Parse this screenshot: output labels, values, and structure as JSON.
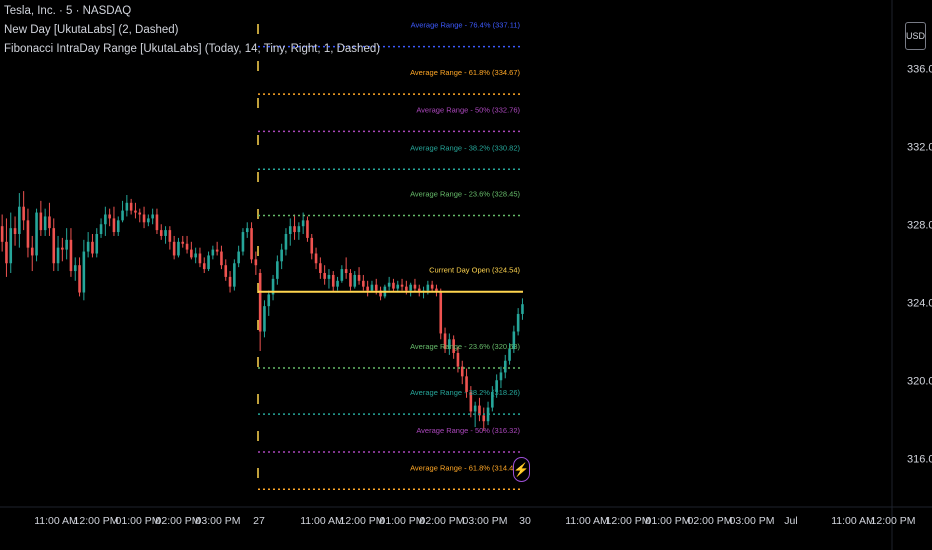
{
  "legend": {
    "symbol": "Tesla, Inc. · 5 · NASDAQ",
    "indicator1": "New Day [UkutaLabs] (2, Dashed)",
    "indicator2": "Fibonacci IntraDay Range [UkutaLabs] (Today, 14, Tiny, Right, 1, Dashed)"
  },
  "currency_button": "USD",
  "colors": {
    "up": "#26a69a",
    "down": "#ef5350",
    "blue": "#3d5afe",
    "orange": "#ffa726",
    "purple": "#ab47bc",
    "teal": "#26a69a",
    "green": "#66bb6a",
    "gold": "#ffd54f"
  },
  "chart_data": {
    "type": "candlestick",
    "symbol": "TSLA",
    "interval": "5",
    "ylim": [
      313.5,
      339.5
    ],
    "y_ticks": [
      "336.00",
      "332.00",
      "328.00",
      "324.00",
      "320.00",
      "316.00"
    ],
    "y_tick_values": [
      336,
      332,
      328,
      324,
      320,
      316
    ],
    "x_tick_labels": [
      "11:00 AM",
      "12:00 PM",
      "01:00 PM",
      "02:00 PM",
      "03:00 PM",
      "27",
      "11:00 AM",
      "12:00 PM",
      "01:00 PM",
      "02:00 PM",
      "03:00 PM",
      "30",
      "11:00 AM",
      "12:00 PM",
      "01:00 PM",
      "02:00 PM",
      "03:00 PM",
      "Jul",
      "11:00 AM",
      "12:00 PM"
    ],
    "new_day_dividers": [
      "27"
    ],
    "levels": [
      {
        "label": "Average Range - 76.4% (337.11)",
        "value": 337.11,
        "color": "blue"
      },
      {
        "label": "Average Range - 61.8% (334.67)",
        "value": 334.67,
        "color": "orange"
      },
      {
        "label": "Average Range - 50% (332.76)",
        "value": 332.76,
        "color": "purple"
      },
      {
        "label": "Average Range - 38.2% (330.82)",
        "value": 330.82,
        "color": "teal"
      },
      {
        "label": "Average Range - 23.6% (328.45)",
        "value": 328.45,
        "color": "green"
      },
      {
        "label": "Current Day Open (324.54)",
        "value": 324.54,
        "color": "gold"
      },
      {
        "label": "Average Range - 23.6% (320.63)",
        "value": 320.63,
        "color": "green"
      },
      {
        "label": "Average Range - 38.2% (318.26)",
        "value": 318.26,
        "color": "teal"
      },
      {
        "label": "Average Range - 50% (316.32)",
        "value": 316.32,
        "color": "purple"
      },
      {
        "label": "Average Range - 61.8% (314.41)",
        "value": 314.41,
        "color": "orange"
      }
    ],
    "candles": [
      [
        327.9,
        328.5,
        326.6,
        327.1
      ],
      [
        327.1,
        328.3,
        325.3,
        326
      ],
      [
        326,
        328.6,
        325.5,
        327.8
      ],
      [
        327.8,
        328.4,
        326.9,
        327.5
      ],
      [
        327.5,
        329.6,
        326.8,
        328.9
      ],
      [
        328.9,
        329.7,
        327.7,
        328.2
      ],
      [
        328.2,
        328.8,
        326.3,
        326.8
      ],
      [
        326.8,
        327.4,
        325.6,
        326.4
      ],
      [
        326.4,
        328.8,
        326.1,
        328.6
      ],
      [
        328.6,
        329.2,
        327.4,
        327.7
      ],
      [
        327.7,
        328.8,
        327.4,
        328.4
      ],
      [
        328.4,
        329.1,
        327.4,
        327.8
      ],
      [
        327.8,
        328.3,
        325.6,
        326
      ],
      [
        326,
        327.4,
        325.6,
        326.8
      ],
      [
        326.8,
        327.3,
        326.1,
        326.7
      ],
      [
        326.7,
        327.8,
        326.2,
        327.2
      ],
      [
        327.2,
        327.8,
        325.3,
        325.6
      ],
      [
        325.6,
        326.3,
        325.1,
        325.9
      ],
      [
        325.9,
        326.3,
        324.3,
        324.5
      ],
      [
        324.5,
        327.2,
        324.1,
        326.6
      ],
      [
        326.6,
        327.6,
        326.3,
        327.1
      ],
      [
        327.1,
        327.5,
        326.3,
        326.5
      ],
      [
        326.5,
        327.8,
        326.3,
        327.5
      ],
      [
        327.5,
        328.3,
        327.3,
        328
      ],
      [
        328,
        328.9,
        327.4,
        328.5
      ],
      [
        328.5,
        328.8,
        327.9,
        328.3
      ],
      [
        328.3,
        328.9,
        327.4,
        327.6
      ],
      [
        327.6,
        328.4,
        327.4,
        328.2
      ],
      [
        328.2,
        329.2,
        328.1,
        328.7
      ],
      [
        328.7,
        329.5,
        328.4,
        329.1
      ],
      [
        329.1,
        329.3,
        328.5,
        328.7
      ],
      [
        328.7,
        329.1,
        328.3,
        328.6
      ],
      [
        328.6,
        328.8,
        328.1,
        328.5
      ],
      [
        328.5,
        328.9,
        327.8,
        328.1
      ],
      [
        328.1,
        328.5,
        327.9,
        328.3
      ],
      [
        328.3,
        328.8,
        328,
        328.5
      ],
      [
        328.5,
        328.8,
        327.5,
        327.7
      ],
      [
        327.7,
        328,
        327.2,
        327.4
      ],
      [
        327.4,
        327.9,
        327,
        327.7
      ],
      [
        327.7,
        327.9,
        326.7,
        327.1
      ],
      [
        327.1,
        327.4,
        326.2,
        326.4
      ],
      [
        326.4,
        327.3,
        326.3,
        327.1
      ],
      [
        327.1,
        327.4,
        326.8,
        327
      ],
      [
        327,
        327.4,
        326.5,
        326.7
      ],
      [
        326.7,
        327.1,
        326.2,
        326.3
      ],
      [
        326.3,
        326.8,
        326,
        326.5
      ],
      [
        326.5,
        326.8,
        325.8,
        326
      ],
      [
        326,
        326.3,
        325.5,
        325.7
      ],
      [
        325.7,
        326.6,
        325.6,
        326.4
      ],
      [
        326.4,
        326.9,
        326.2,
        326.7
      ],
      [
        326.7,
        327.1,
        326.4,
        326.6
      ],
      [
        326.6,
        326.9,
        325.7,
        325.9
      ],
      [
        325.9,
        326.2,
        325.1,
        325.3
      ],
      [
        325.3,
        325.6,
        324.5,
        324.8
      ],
      [
        324.8,
        326.2,
        324.6,
        326
      ],
      [
        326,
        326.9,
        325.8,
        326.6
      ],
      [
        326.6,
        327.8,
        326.4,
        327.6
      ],
      [
        327.6,
        328.1,
        327.3,
        327.8
      ],
      [
        327.8,
        328.1,
        326,
        326.2
      ],
      [
        326.2,
        326.6,
        325.4,
        325.9
      ],
      [
        325.5,
        325.7,
        321.5,
        322.5
      ],
      [
        322.5,
        324.1,
        322.2,
        323.8
      ],
      [
        323.8,
        324.6,
        323.3,
        324.4
      ],
      [
        324.4,
        325.4,
        324.1,
        325.2
      ],
      [
        325.2,
        326.4,
        324.9,
        326.1
      ],
      [
        326.1,
        327,
        325.7,
        326.7
      ],
      [
        326.7,
        327.8,
        326.4,
        327.5
      ],
      [
        327.5,
        328.3,
        326.9,
        327.9
      ],
      [
        327.9,
        328.5,
        327.2,
        327.6
      ],
      [
        327.6,
        328.1,
        327.2,
        327.9
      ],
      [
        327.9,
        328.6,
        327.5,
        328.2
      ],
      [
        328.2,
        328.4,
        327.1,
        327.3
      ],
      [
        327.3,
        327.5,
        326.2,
        326.5
      ],
      [
        326.5,
        326.8,
        325.7,
        326
      ],
      [
        326,
        326.3,
        325.2,
        325.5
      ],
      [
        325.5,
        325.9,
        324.9,
        325.2
      ],
      [
        325.2,
        325.7,
        324.7,
        325.4
      ],
      [
        325.4,
        325.6,
        324.5,
        324.8
      ],
      [
        324.8,
        325.3,
        324.6,
        325.1
      ],
      [
        325.1,
        325.9,
        325,
        325.7
      ],
      [
        325.7,
        326.3,
        325.2,
        325.5
      ],
      [
        325.5,
        325.7,
        324.6,
        324.8
      ],
      [
        324.8,
        325.6,
        324.7,
        325.4
      ],
      [
        325.4,
        325.8,
        324.9,
        325.1
      ],
      [
        325.1,
        325.4,
        324.6,
        324.8
      ],
      [
        324.8,
        325.1,
        324.3,
        324.6
      ],
      [
        324.6,
        325.1,
        324.5,
        324.9
      ],
      [
        324.9,
        325.2,
        324.4,
        324.6
      ],
      [
        324.6,
        324.8,
        324.1,
        324.3
      ],
      [
        324.3,
        324.9,
        324.2,
        324.8
      ],
      [
        324.8,
        325.3,
        324.6,
        325
      ],
      [
        325,
        325.2,
        324.5,
        324.7
      ],
      [
        324.7,
        325.1,
        324.5,
        324.9
      ],
      [
        324.9,
        325.2,
        324.6,
        324.8
      ],
      [
        324.8,
        325.1,
        324.4,
        324.6
      ],
      [
        324.6,
        325,
        324.3,
        324.9
      ],
      [
        324.9,
        325.2,
        324.5,
        324.7
      ],
      [
        324.7,
        324.9,
        324.3,
        324.5
      ],
      [
        324.5,
        324.8,
        324.2,
        324.6
      ],
      [
        324.6,
        325.1,
        324.4,
        324.9
      ],
      [
        324.9,
        325.1,
        324.5,
        324.7
      ],
      [
        324.7,
        324.9,
        324.3,
        324.5
      ],
      [
        324.5,
        324.7,
        322.1,
        322.4
      ],
      [
        322.4,
        322.7,
        321.4,
        321.6
      ],
      [
        321.6,
        322.4,
        321.3,
        322.1
      ],
      [
        322.1,
        322.3,
        321.1,
        321.4
      ],
      [
        321.4,
        321.7,
        320.4,
        320.7
      ],
      [
        320.7,
        321,
        319.8,
        320.2
      ],
      [
        320.2,
        320.6,
        319.1,
        319.4
      ],
      [
        319.4,
        319.7,
        318.1,
        318.4
      ],
      [
        318.4,
        318.9,
        317.6,
        318.7
      ],
      [
        318.7,
        319.1,
        317.9,
        318.2
      ],
      [
        318.2,
        318.6,
        317.4,
        317.9
      ],
      [
        317.9,
        318.9,
        317.7,
        318.6
      ],
      [
        318.6,
        319.7,
        318.4,
        319.4
      ],
      [
        319.4,
        320.3,
        319.1,
        320
      ],
      [
        320,
        320.7,
        319.6,
        320.4
      ],
      [
        320.4,
        321.3,
        320.1,
        321
      ],
      [
        321,
        321.9,
        320.8,
        321.6
      ],
      [
        321.6,
        322.8,
        321.4,
        322.5
      ],
      [
        322.5,
        323.7,
        322.3,
        323.4
      ],
      [
        323.4,
        324.2,
        323.1,
        323.9
      ]
    ]
  }
}
